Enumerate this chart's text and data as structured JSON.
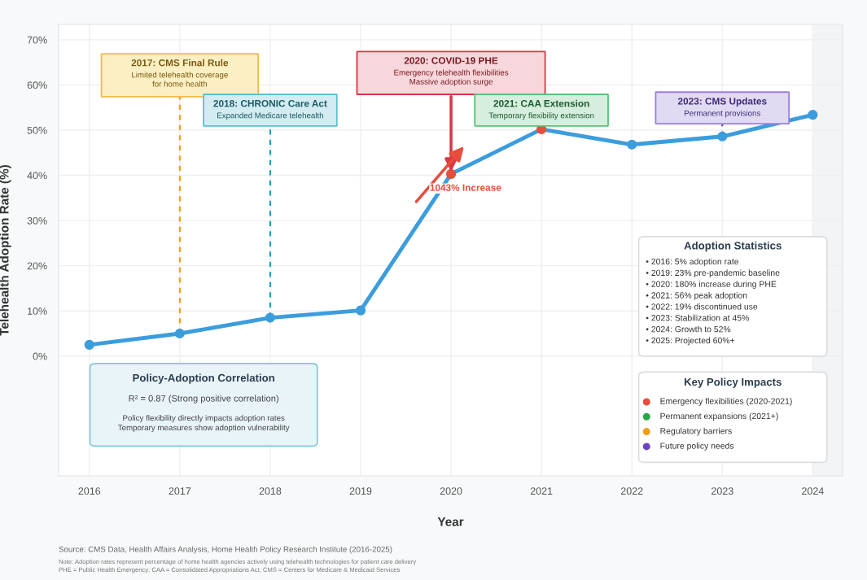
{
  "chart_data": {
    "type": "line",
    "xlabel": "Year",
    "ylabel": "Telehealth Adoption Rate (%)",
    "x": [
      2016,
      2017,
      2018,
      2019,
      2020,
      2021,
      2022,
      2023,
      2024
    ],
    "series": [
      {
        "color": "#3b9ddd",
        "values": [
          2.5,
          5.0,
          8.5,
          10.1,
          40.3,
          50.2,
          46.8,
          48.6,
          53.4
        ],
        "colors": [
          "#3b9ddd",
          "#3b9ddd",
          "#3b9ddd",
          "#3b9ddd",
          "#e74c3c",
          "#e74c3c",
          "#3b9ddd",
          "#3b9ddd",
          "#3b9ddd"
        ]
      }
    ],
    "xlim": [
      2015.66,
      2024.33
    ],
    "ylim": [
      -26.5,
      73.4
    ],
    "xticks": [
      2016,
      2017,
      2018,
      2019,
      2020,
      2021,
      2022,
      2023,
      2024
    ],
    "yticks": [
      {
        "value": 0,
        "label": "0%"
      },
      {
        "value": 10,
        "label": "10%"
      },
      {
        "value": 20,
        "label": "20%"
      },
      {
        "value": 30,
        "label": "30%"
      },
      {
        "value": 40,
        "label": "40%"
      },
      {
        "value": 50,
        "label": "50%"
      },
      {
        "value": 60,
        "label": "60%"
      },
      {
        "value": 70,
        "label": "70%"
      }
    ],
    "bands": [
      {
        "axis": "x",
        "from": 2024,
        "to": 2024.33,
        "color": "#f3f4f6"
      }
    ],
    "grid": true,
    "marker": "circle",
    "line_style": "solid",
    "annotations": [
      {
        "text": "2017: CMS Final Rule\nLimited telehealth coverage\nfor home health",
        "x": 2017,
        "y": 5.0
      },
      {
        "text": "2018: CHRONIC Care Act\nExpanded Medicare telehealth",
        "x": 2018,
        "y": 8.5
      },
      {
        "text": "2020: COVID-19 PHE\nEmergency telehealth flexibilities\nMassive adoption surge",
        "x": 2020,
        "y": 40.3
      },
      {
        "text": "2021: CAA Extension\nTemporary flexibility extension",
        "x": 2021,
        "y": 50.2
      },
      {
        "text": "2023: CMS Updates\nPermanent provisions",
        "x": 2023,
        "y": 48.6
      },
      {
        "text": "1043% Increase",
        "x": 2020,
        "y": 40.3
      },
      "Policy-Adoption Correlation\nR² = 0.87 (Strong positive correlation)\nPolicy flexibility directly impacts adoption rates\nTemporary measures show adoption vulnerability",
      "Adoption Statistics\n• 2016: 5% adoption rate\n• 2019: 23% pre-pandemic baseline\n• 2020: 180% increase during PHE\n• 2021: 56% peak adoption\n• 2022: 19% discontinued use\n• 2023: Stabilization at 45%\n• 2024: Growth to 52%\n• 2025: Projected 60%+",
      "Key Policy Impacts\nEmergency flexibilities (2020-2021)\nPermanent expansions (2021+)\nRegulatory barriers\nFuture policy needs",
      "Source: CMS Data, Health Affairs Analysis, Home Health Policy Research Institute (2016-2025)",
      "Note: Adoption rates represent percentage of home health agencies actively using telehealth technologies for patient care delivery\nPHE = Public Health Emergency; CAA = Consolidated Appropriations Act; CMS = Centers for Medicare & Medicaid Services"
    ]
  }
}
